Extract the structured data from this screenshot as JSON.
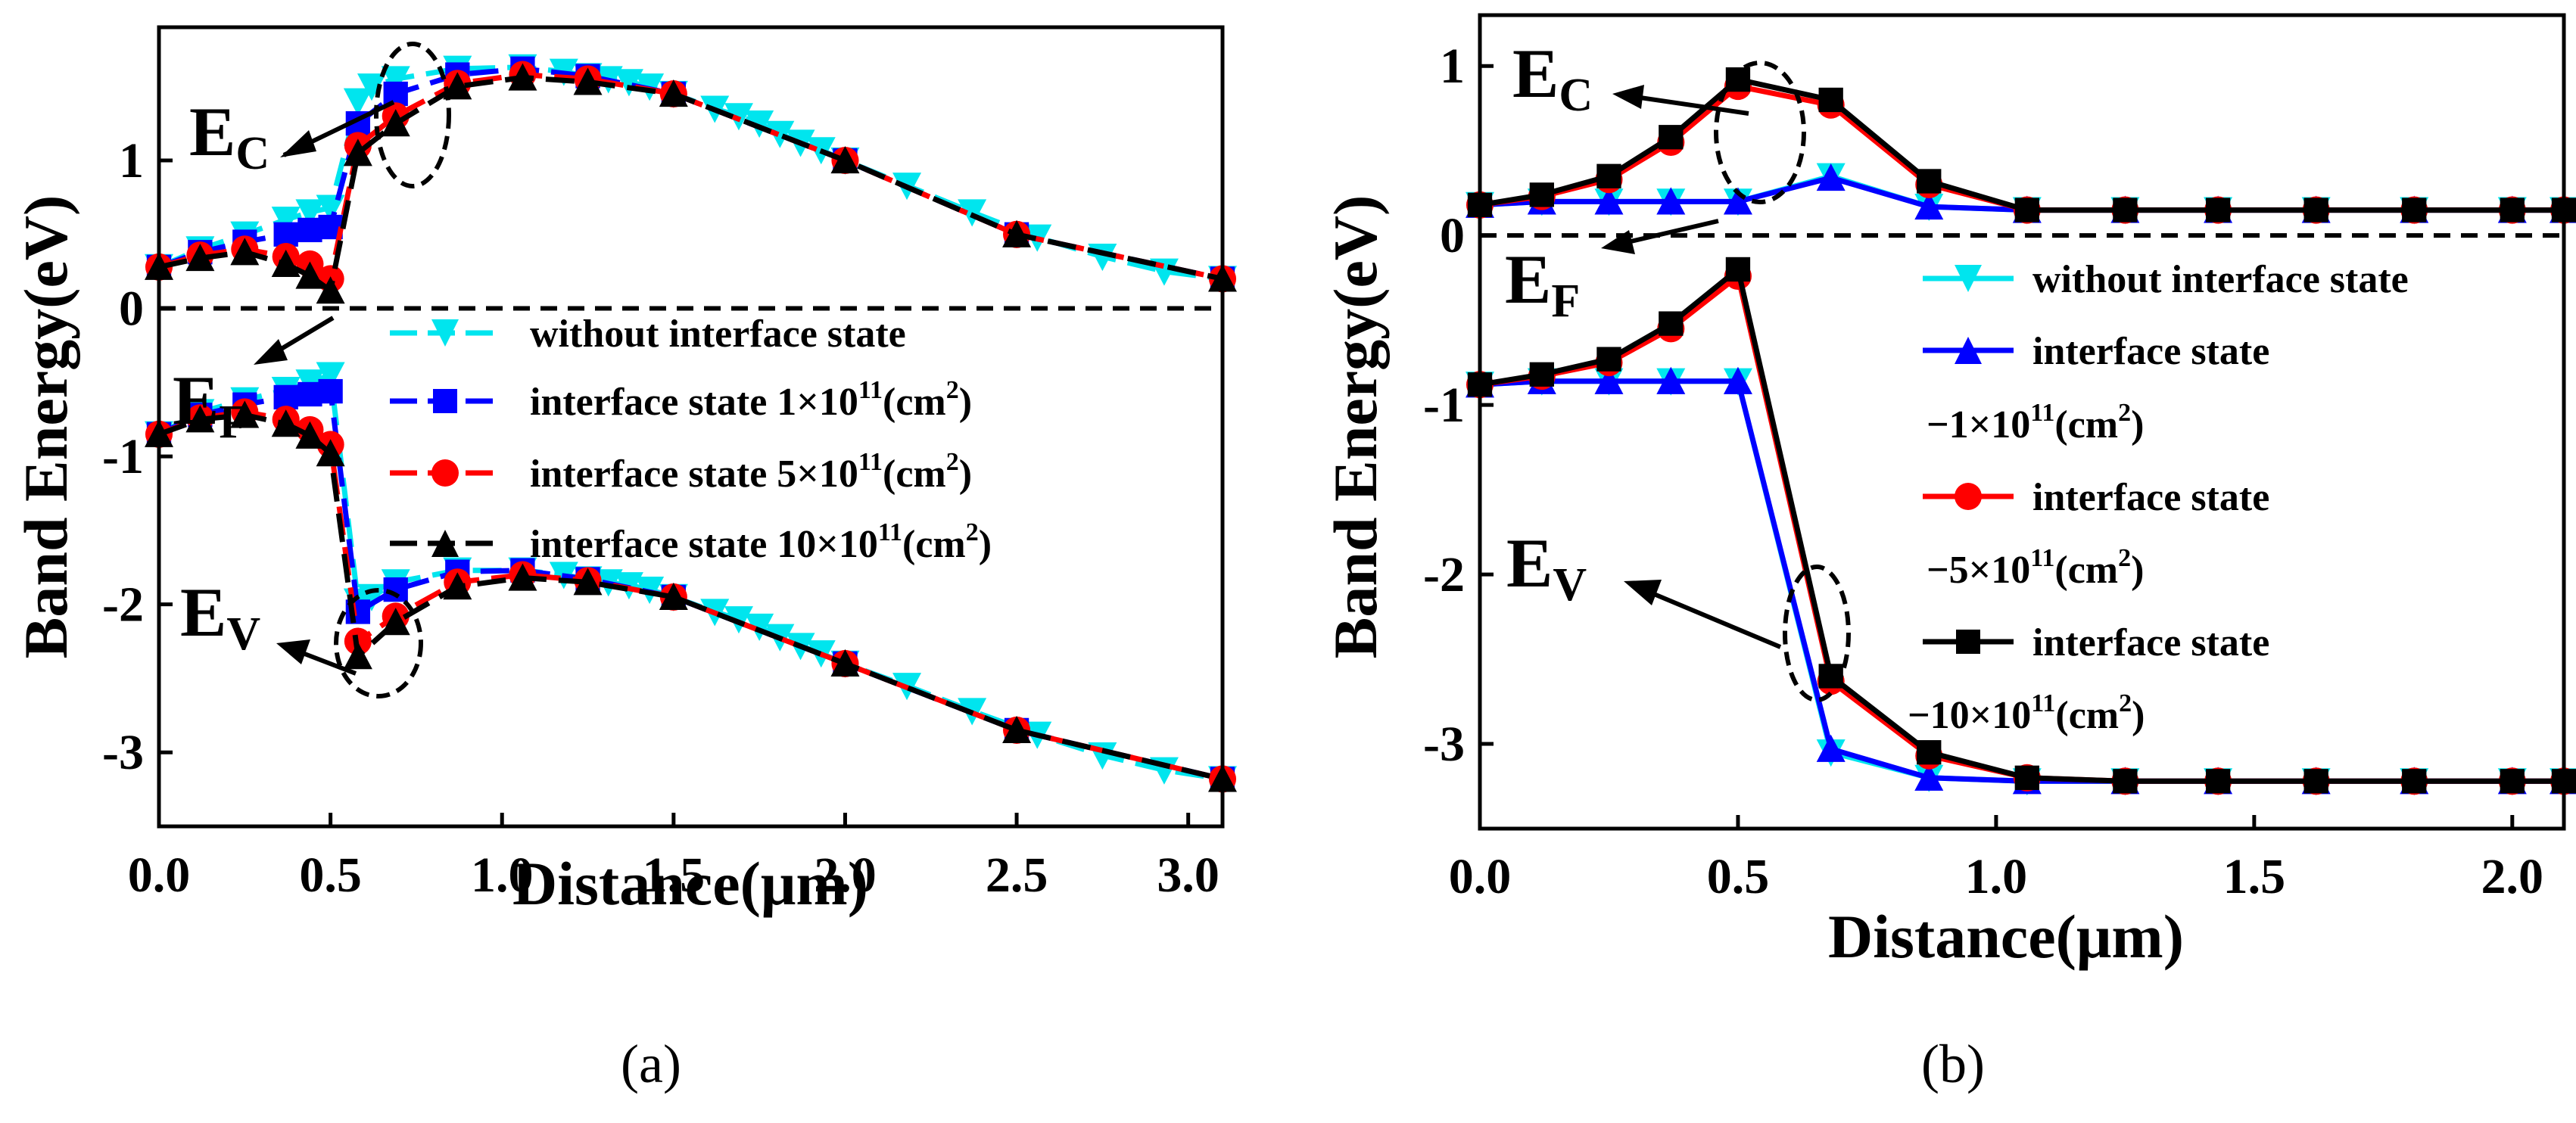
{
  "chart_data": [
    {
      "panel_label": "(a)",
      "type": "line",
      "xlabel": "Distance(μm)",
      "ylabel": "Band Energy(eV)",
      "xlim": [
        0.0,
        3.1
      ],
      "ylim": [
        -3.5,
        1.9
      ],
      "xticks": [
        0.0,
        0.5,
        1.0,
        1.5,
        2.0,
        2.5,
        3.0
      ],
      "xtick_labels": [
        "0.0",
        "0.5",
        "1.0",
        "1.5",
        "2.0",
        "2.5",
        "3.0"
      ],
      "yticks": [
        1,
        0,
        -1,
        -2,
        -3
      ],
      "ytick_labels": [
        "1",
        "0",
        "-1",
        "-2",
        "-3"
      ],
      "fermi_level": 0.0,
      "annotations": {
        "ec": {
          "main": "E",
          "sub": "C"
        },
        "ef": {
          "main": "E",
          "sub": "F"
        },
        "ev": {
          "main": "E",
          "sub": "V"
        }
      },
      "legend": [
        {
          "label": "without interface state",
          "color": "#00e5ee",
          "marker": "tri-down"
        },
        {
          "label": "interface state  1×10",
          "sup": "11",
          "tail": "(cm",
          "sup2": "2",
          "end": ")",
          "color": "#0000ff",
          "marker": "square"
        },
        {
          "label": "interface state  5×10",
          "sup": "11",
          "tail": "(cm",
          "sup2": "2",
          "end": ")",
          "color": "#ff0000",
          "marker": "circle"
        },
        {
          "label": "interface state  10×10",
          "sup": "11",
          "tail": "(cm",
          "sup2": "2",
          "end": ")",
          "color": "#000000",
          "marker": "tri-up"
        }
      ],
      "series": [
        {
          "name": "without interface state",
          "color": "#00e5ee",
          "marker": "tri-down",
          "band": "Ec",
          "x": [
            0.0,
            0.12,
            0.25,
            0.37,
            0.44,
            0.5,
            0.58,
            0.62,
            0.69,
            0.87,
            1.06,
            1.18,
            1.25,
            1.31,
            1.37,
            1.43,
            1.5,
            1.62,
            1.69,
            1.75,
            1.81,
            1.87,
            1.93,
            2.0,
            2.18,
            2.37,
            2.56,
            2.75,
            2.93,
            3.1
          ],
          "y": [
            0.28,
            0.4,
            0.5,
            0.6,
            0.65,
            0.68,
            1.4,
            1.5,
            1.55,
            1.62,
            1.63,
            1.6,
            1.57,
            1.55,
            1.53,
            1.5,
            1.45,
            1.35,
            1.3,
            1.25,
            1.18,
            1.12,
            1.07,
            1.0,
            0.83,
            0.65,
            0.48,
            0.35,
            0.25,
            0.2
          ]
        },
        {
          "name": "interface state 1×10^11(cm^2)",
          "color": "#0000ff",
          "marker": "square",
          "band": "Ec",
          "x": [
            0.0,
            0.12,
            0.25,
            0.37,
            0.44,
            0.5,
            0.58,
            0.69,
            0.87,
            1.06,
            1.25,
            1.5,
            2.0,
            2.5,
            3.1
          ],
          "y": [
            0.28,
            0.38,
            0.45,
            0.5,
            0.53,
            0.55,
            1.25,
            1.45,
            1.58,
            1.62,
            1.57,
            1.45,
            1.0,
            0.5,
            0.2
          ]
        },
        {
          "name": "interface state 5×10^11(cm^2)",
          "color": "#ff0000",
          "marker": "circle",
          "band": "Ec",
          "x": [
            0.0,
            0.12,
            0.25,
            0.37,
            0.44,
            0.5,
            0.58,
            0.69,
            0.87,
            1.06,
            1.25,
            1.5,
            2.0,
            2.5,
            3.1
          ],
          "y": [
            0.28,
            0.36,
            0.4,
            0.35,
            0.3,
            0.2,
            1.1,
            1.3,
            1.52,
            1.58,
            1.55,
            1.45,
            1.0,
            0.5,
            0.2
          ]
        },
        {
          "name": "interface state 10×10^11(cm^2)",
          "color": "#000000",
          "marker": "tri-up",
          "band": "Ec",
          "x": [
            0.0,
            0.12,
            0.25,
            0.37,
            0.44,
            0.5,
            0.58,
            0.69,
            0.87,
            1.06,
            1.25,
            1.5,
            2.0,
            2.5,
            3.1
          ],
          "y": [
            0.28,
            0.34,
            0.38,
            0.3,
            0.22,
            0.12,
            1.05,
            1.25,
            1.5,
            1.56,
            1.53,
            1.45,
            1.0,
            0.5,
            0.2
          ]
        },
        {
          "name": "without interface state",
          "color": "#00e5ee",
          "marker": "tri-down",
          "band": "Ev",
          "x": [
            0.0,
            0.12,
            0.25,
            0.37,
            0.44,
            0.5,
            0.58,
            0.62,
            0.69,
            0.87,
            1.06,
            1.18,
            1.25,
            1.31,
            1.37,
            1.43,
            1.5,
            1.62,
            1.69,
            1.75,
            1.81,
            1.87,
            1.93,
            2.0,
            2.18,
            2.37,
            2.56,
            2.75,
            2.93,
            3.1
          ],
          "y": [
            -0.85,
            -0.7,
            -0.62,
            -0.55,
            -0.5,
            -0.45,
            -1.98,
            -1.95,
            -1.85,
            -1.77,
            -1.77,
            -1.8,
            -1.83,
            -1.85,
            -1.87,
            -1.9,
            -1.95,
            -2.05,
            -2.1,
            -2.15,
            -2.22,
            -2.28,
            -2.33,
            -2.4,
            -2.55,
            -2.72,
            -2.88,
            -3.02,
            -3.12,
            -3.18
          ]
        },
        {
          "name": "interface state 1×10^11(cm^2)",
          "color": "#0000ff",
          "marker": "square",
          "band": "Ev",
          "x": [
            0.0,
            0.12,
            0.25,
            0.37,
            0.44,
            0.5,
            0.58,
            0.69,
            0.87,
            1.06,
            1.25,
            1.5,
            2.0,
            2.5,
            3.1
          ],
          "y": [
            -0.85,
            -0.72,
            -0.65,
            -0.6,
            -0.58,
            -0.56,
            -2.05,
            -1.9,
            -1.78,
            -1.77,
            -1.83,
            -1.95,
            -2.4,
            -2.85,
            -3.18
          ]
        },
        {
          "name": "interface state 5×10^11(cm^2)",
          "color": "#ff0000",
          "marker": "circle",
          "band": "Ev",
          "x": [
            0.0,
            0.12,
            0.25,
            0.37,
            0.44,
            0.5,
            0.58,
            0.69,
            0.87,
            1.06,
            1.25,
            1.5,
            2.0,
            2.5,
            3.1
          ],
          "y": [
            -0.85,
            -0.74,
            -0.7,
            -0.75,
            -0.82,
            -0.92,
            -2.25,
            -2.08,
            -1.85,
            -1.8,
            -1.84,
            -1.95,
            -2.4,
            -2.85,
            -3.18
          ]
        },
        {
          "name": "interface state 10×10^11(cm^2)",
          "color": "#000000",
          "marker": "tri-up",
          "band": "Ev",
          "x": [
            0.0,
            0.12,
            0.25,
            0.37,
            0.44,
            0.5,
            0.58,
            0.69,
            0.87,
            1.06,
            1.25,
            1.5,
            2.0,
            2.5,
            3.1
          ],
          "y": [
            -0.85,
            -0.75,
            -0.72,
            -0.78,
            -0.86,
            -0.98,
            -2.35,
            -2.12,
            -1.88,
            -1.82,
            -1.85,
            -1.95,
            -2.4,
            -2.85,
            -3.18
          ]
        }
      ]
    },
    {
      "panel_label": "(b)",
      "type": "line",
      "xlabel": "Distance(μm)",
      "ylabel": "Band Energy(eV)",
      "xlim": [
        0.0,
        2.1
      ],
      "ylim": [
        -3.5,
        1.3
      ],
      "xticks": [
        0.0,
        0.5,
        1.0,
        1.5,
        2.0
      ],
      "xtick_labels": [
        "0.0",
        "0.5",
        "1.0",
        "1.5",
        "2.0"
      ],
      "yticks": [
        1,
        0,
        -1,
        -2,
        -3
      ],
      "ytick_labels": [
        "1",
        "0",
        "-1",
        "-2",
        "-3"
      ],
      "fermi_level": 0.0,
      "annotations": {
        "ec": {
          "main": "E",
          "sub": "C"
        },
        "ef": {
          "main": "E",
          "sub": "F"
        },
        "ev": {
          "main": "E",
          "sub": "V"
        }
      },
      "legend": [
        {
          "label": "without interface state",
          "color": "#00e5ee",
          "marker": "tri-down"
        },
        {
          "label": "interface state",
          "color": "#0000ff",
          "marker": "tri-up",
          "line2": "−1×10",
          "sup": "11",
          "tail": "(cm",
          "sup2": "2",
          "end": ")"
        },
        {
          "label": "interface state",
          "color": "#ff0000",
          "marker": "circle",
          "line2": "−5×10",
          "sup": "11",
          "tail": "(cm",
          "sup2": "2",
          "end": ")"
        },
        {
          "label": "interface state",
          "color": "#000000",
          "marker": "square",
          "line2": "−10×10",
          "sup": "11",
          "tail": "(cm",
          "sup2": "2",
          "end": ")"
        }
      ],
      "series": [
        {
          "name": "without interface state",
          "color": "#00e5ee",
          "marker": "tri-down",
          "band": "Ec",
          "x": [
            0.0,
            0.12,
            0.25,
            0.37,
            0.5,
            0.68,
            0.87,
            1.06,
            1.25,
            1.43,
            1.62,
            1.81,
            2.0,
            2.1
          ],
          "y": [
            0.18,
            0.2,
            0.2,
            0.2,
            0.2,
            0.35,
            0.17,
            0.15,
            0.15,
            0.15,
            0.15,
            0.15,
            0.15,
            0.15
          ]
        },
        {
          "name": "interface state −1×10^11(cm^2)",
          "color": "#0000ff",
          "marker": "tri-up",
          "band": "Ec",
          "x": [
            0.0,
            0.12,
            0.25,
            0.37,
            0.5,
            0.68,
            0.87,
            1.06,
            1.25,
            1.43,
            1.62,
            1.81,
            2.0,
            2.1
          ],
          "y": [
            0.18,
            0.2,
            0.2,
            0.2,
            0.2,
            0.34,
            0.17,
            0.15,
            0.15,
            0.15,
            0.15,
            0.15,
            0.15,
            0.15
          ]
        },
        {
          "name": "interface state −5×10^11(cm^2)",
          "color": "#ff0000",
          "marker": "circle",
          "band": "Ec",
          "x": [
            0.0,
            0.12,
            0.25,
            0.37,
            0.5,
            0.68,
            0.87,
            1.06,
            1.25,
            1.43,
            1.62,
            1.81,
            2.0,
            2.1
          ],
          "y": [
            0.18,
            0.23,
            0.33,
            0.55,
            0.88,
            0.77,
            0.3,
            0.15,
            0.15,
            0.15,
            0.15,
            0.15,
            0.15,
            0.15
          ]
        },
        {
          "name": "interface state −10×10^11(cm^2)",
          "color": "#000000",
          "marker": "square",
          "band": "Ec",
          "x": [
            0.0,
            0.12,
            0.25,
            0.37,
            0.5,
            0.68,
            0.87,
            1.06,
            1.25,
            1.43,
            1.62,
            1.81,
            2.0,
            2.1
          ],
          "y": [
            0.18,
            0.24,
            0.35,
            0.58,
            0.92,
            0.8,
            0.32,
            0.15,
            0.15,
            0.15,
            0.15,
            0.15,
            0.15,
            0.15
          ]
        },
        {
          "name": "without interface state",
          "color": "#00e5ee",
          "marker": "tri-down",
          "band": "Ev",
          "x": [
            0.0,
            0.12,
            0.25,
            0.37,
            0.5,
            0.68,
            0.87,
            1.06,
            1.25,
            1.43,
            1.62,
            1.81,
            2.0,
            2.1
          ],
          "y": [
            -0.88,
            -0.86,
            -0.86,
            -0.86,
            -0.86,
            -3.05,
            -3.2,
            -3.22,
            -3.22,
            -3.22,
            -3.22,
            -3.22,
            -3.22,
            -3.22
          ]
        },
        {
          "name": "interface state −1×10^11(cm^2)",
          "color": "#0000ff",
          "marker": "tri-up",
          "band": "Ev",
          "x": [
            0.0,
            0.12,
            0.25,
            0.37,
            0.5,
            0.68,
            0.87,
            1.06,
            1.25,
            1.43,
            1.62,
            1.81,
            2.0,
            2.1
          ],
          "y": [
            -0.88,
            -0.86,
            -0.86,
            -0.86,
            -0.86,
            -3.03,
            -3.2,
            -3.22,
            -3.22,
            -3.22,
            -3.22,
            -3.22,
            -3.22,
            -3.22
          ]
        },
        {
          "name": "interface state −5×10^11(cm^2)",
          "color": "#ff0000",
          "marker": "circle",
          "band": "Ev",
          "x": [
            0.0,
            0.12,
            0.25,
            0.37,
            0.5,
            0.68,
            0.87,
            1.06,
            1.25,
            1.43,
            1.62,
            1.81,
            2.0,
            2.1
          ],
          "y": [
            -0.88,
            -0.83,
            -0.75,
            -0.55,
            -0.24,
            -2.63,
            -3.07,
            -3.2,
            -3.22,
            -3.22,
            -3.22,
            -3.22,
            -3.22,
            -3.22
          ]
        },
        {
          "name": "interface state −10×10^11(cm^2)",
          "color": "#000000",
          "marker": "square",
          "band": "Ev",
          "x": [
            0.0,
            0.12,
            0.25,
            0.37,
            0.5,
            0.68,
            0.87,
            1.06,
            1.25,
            1.43,
            1.62,
            1.81,
            2.0,
            2.1
          ],
          "y": [
            -0.88,
            -0.82,
            -0.73,
            -0.52,
            -0.2,
            -2.6,
            -3.05,
            -3.2,
            -3.22,
            -3.22,
            -3.22,
            -3.22,
            -3.22,
            -3.22
          ]
        }
      ]
    }
  ]
}
